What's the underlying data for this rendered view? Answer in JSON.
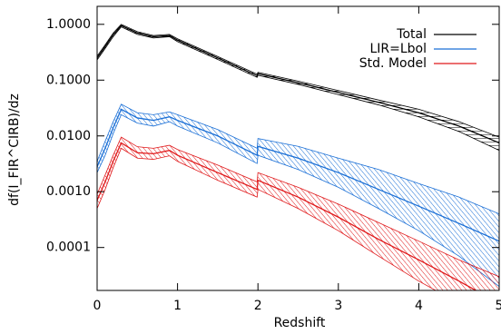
{
  "chart_data": {
    "type": "band-line",
    "xlabel": "Redshift",
    "ylabel": "df(I_FIR^CIRB)/dz",
    "x": [
      0,
      0.1,
      0.2,
      0.3,
      0.5,
      0.7,
      0.9,
      1.0,
      1.5,
      1.99,
      2.0,
      2.5,
      3.0,
      3.5,
      4.0,
      4.5,
      5.0
    ],
    "series": [
      {
        "name": "Total",
        "color": "#000000",
        "values": [
          0.25,
          0.4,
          0.65,
          0.95,
          0.7,
          0.6,
          0.63,
          0.52,
          0.25,
          0.12,
          0.13,
          0.09,
          0.06,
          0.04,
          0.026,
          0.015,
          0.0075
        ],
        "lower": [
          0.23,
          0.37,
          0.6,
          0.9,
          0.66,
          0.57,
          0.6,
          0.49,
          0.235,
          0.112,
          0.122,
          0.084,
          0.055,
          0.036,
          0.022,
          0.012,
          0.0055
        ],
        "upper": [
          0.27,
          0.43,
          0.7,
          1.0,
          0.74,
          0.63,
          0.66,
          0.55,
          0.265,
          0.128,
          0.138,
          0.096,
          0.065,
          0.044,
          0.03,
          0.018,
          0.0095
        ]
      },
      {
        "name": "LIR=Lbol",
        "color": "#1a6fd6",
        "values": [
          0.0028,
          0.006,
          0.014,
          0.03,
          0.021,
          0.019,
          0.022,
          0.019,
          0.01,
          0.0045,
          0.0065,
          0.004,
          0.0022,
          0.0011,
          0.00055,
          0.00027,
          0.00013
        ],
        "lower": [
          0.0022,
          0.0045,
          0.011,
          0.024,
          0.017,
          0.015,
          0.018,
          0.015,
          0.0075,
          0.0032,
          0.0045,
          0.0025,
          0.0012,
          0.0005,
          0.0002,
          7e-05,
          2e-05
        ],
        "upper": [
          0.0035,
          0.008,
          0.018,
          0.037,
          0.026,
          0.024,
          0.027,
          0.024,
          0.013,
          0.006,
          0.009,
          0.0065,
          0.004,
          0.0025,
          0.0014,
          0.0008,
          0.0004
        ]
      },
      {
        "name": "Std. Model",
        "color": "#e0191b",
        "values": [
          0.0007,
          0.0015,
          0.0035,
          0.0075,
          0.005,
          0.0048,
          0.0055,
          0.0045,
          0.0022,
          0.0011,
          0.0016,
          0.0008,
          0.00035,
          0.00014,
          6e-05,
          2.5e-05,
          1e-05
        ],
        "lower": [
          0.0005,
          0.0011,
          0.0027,
          0.006,
          0.004,
          0.0038,
          0.0044,
          0.0035,
          0.0016,
          0.0008,
          0.0011,
          0.0005,
          0.0002,
          7e-05,
          2.5e-05,
          1e-05,
          4e-06
        ],
        "upper": [
          0.0009,
          0.002,
          0.0045,
          0.0095,
          0.0064,
          0.006,
          0.0068,
          0.0057,
          0.003,
          0.0015,
          0.0022,
          0.0012,
          0.0006,
          0.00028,
          0.00013,
          6e-05,
          3e-05
        ]
      }
    ],
    "xlim": [
      0,
      5
    ],
    "xticks": [
      0,
      1,
      2,
      3,
      4,
      5
    ],
    "ylim": [
      1.7e-05,
      2.1
    ],
    "ylog": true,
    "yticks": [
      {
        "value": 1,
        "label": "1.0000"
      },
      {
        "value": 0.1,
        "label": "0.1000"
      },
      {
        "value": 0.01,
        "label": "0.0100"
      },
      {
        "value": 0.001,
        "label": "0.0010"
      },
      {
        "value": 0.0001,
        "label": "0.0001"
      }
    ],
    "legend": "upper right"
  }
}
